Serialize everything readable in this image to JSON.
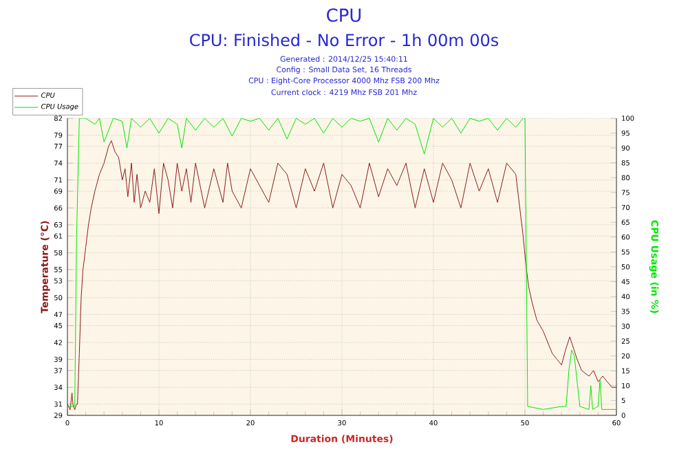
{
  "chart_data": {
    "type": "line",
    "title": "CPU",
    "subtitle": "CPU: Finished - No Error - 1h 00m 00s",
    "annotations": [
      "Generated : 2014/12/25 15:40:11",
      "Config : Small Data Set, 16 Threads",
      "CPU : Eight-Core Processor 4000 Mhz FSB 200 Mhz",
      "Current clock : 4219 Mhz FSB 201 Mhz"
    ],
    "xlabel": "Duration (Minutes)",
    "ylabel": "Temperature (°C)",
    "y2label": "CPU Usage (in %)",
    "xlim": [
      0,
      60
    ],
    "xticks": [
      0,
      10,
      20,
      30,
      40,
      50,
      60
    ],
    "ylim": [
      29,
      82
    ],
    "yticks": [
      29,
      31,
      34,
      37,
      39,
      42,
      45,
      47,
      50,
      53,
      55,
      58,
      61,
      63,
      66,
      69,
      71,
      74,
      77,
      79,
      82
    ],
    "y2lim": [
      0,
      100
    ],
    "y2ticks": [
      0,
      5,
      10,
      15,
      20,
      25,
      30,
      35,
      40,
      45,
      50,
      55,
      60,
      65,
      70,
      75,
      80,
      85,
      90,
      95,
      100
    ],
    "grid": true,
    "legend": "top left",
    "series": [
      {
        "name": "CPU",
        "color": "#8b1a1a",
        "x": [
          0,
          0.3,
          0.5,
          0.6,
          0.8,
          1.0,
          1.1,
          1.3,
          1.5,
          1.7,
          2.0,
          2.3,
          2.6,
          3.0,
          3.5,
          4.0,
          4.5,
          4.8,
          5.2,
          5.6,
          6.0,
          6.3,
          6.6,
          7.0,
          7.3,
          7.6,
          8.0,
          8.5,
          9.0,
          9.5,
          10,
          10.5,
          11,
          11.5,
          12,
          12.5,
          13,
          13.5,
          14,
          14.5,
          15,
          16,
          17,
          17.5,
          18,
          19,
          20,
          21,
          22,
          23,
          24,
          25,
          26,
          27,
          28,
          29,
          30,
          31,
          32,
          33,
          34,
          35,
          36,
          37,
          38,
          39,
          40,
          41,
          42,
          43,
          44,
          45,
          46,
          47,
          48,
          49,
          49.8,
          50.1,
          50.4,
          50.8,
          51.3,
          52,
          52.5,
          53,
          53.5,
          54,
          54.5,
          54.9,
          55.3,
          55.7,
          56.2,
          57,
          57.5,
          58,
          58.5,
          59,
          59.5,
          60
        ],
        "values": [
          31,
          30,
          33,
          31,
          30,
          31,
          31,
          40,
          50,
          55,
          59,
          63,
          66,
          69,
          72,
          74,
          77,
          78,
          76,
          75,
          71,
          73,
          68,
          74,
          67,
          72,
          66,
          69,
          67,
          73,
          65,
          74,
          71,
          66,
          74,
          69,
          73,
          67,
          74,
          70,
          66,
          73,
          67,
          74,
          69,
          66,
          73,
          70,
          67,
          74,
          72,
          66,
          73,
          69,
          74,
          66,
          72,
          70,
          66,
          74,
          68,
          73,
          70,
          74,
          66,
          73,
          67,
          74,
          71,
          66,
          74,
          69,
          73,
          67,
          74,
          72,
          61,
          56,
          52,
          49,
          46,
          44,
          42,
          40,
          39,
          38,
          41,
          43,
          41,
          39,
          37,
          36,
          37,
          35,
          36,
          35,
          34,
          34
        ]
      },
      {
        "name": "CPU Usage",
        "color": "#00e600",
        "axis": "y2",
        "x": [
          0,
          0.8,
          1.0,
          1.3,
          2,
          3,
          3.5,
          4,
          5,
          6,
          6.5,
          7,
          8,
          9,
          10,
          11,
          12,
          12.5,
          13,
          14,
          15,
          16,
          17,
          18,
          19,
          20,
          21,
          22,
          23,
          24,
          25,
          26,
          27,
          28,
          29,
          30,
          31,
          32,
          33,
          34,
          35,
          36,
          37,
          38,
          39,
          40,
          41,
          42,
          43,
          44,
          45,
          46,
          47,
          48,
          49,
          49.8,
          50,
          50.3,
          52,
          54,
          54.5,
          54.8,
          55.1,
          55.4,
          56,
          57,
          57.2,
          57.4,
          58,
          58.2,
          58.4,
          60
        ],
        "values": [
          3,
          3,
          60,
          100,
          100,
          98,
          100,
          92,
          100,
          99,
          90,
          100,
          97,
          100,
          95,
          100,
          98,
          90,
          100,
          96,
          100,
          97,
          100,
          94,
          100,
          99,
          100,
          96,
          100,
          93,
          100,
          98,
          100,
          95,
          100,
          97,
          100,
          99,
          100,
          92,
          100,
          96,
          100,
          98,
          88,
          100,
          97,
          100,
          95,
          100,
          99,
          100,
          96,
          100,
          97,
          100,
          100,
          3,
          2,
          3,
          3,
          15,
          22,
          20,
          3,
          2,
          10,
          2,
          3,
          12,
          2,
          2
        ]
      }
    ]
  }
}
